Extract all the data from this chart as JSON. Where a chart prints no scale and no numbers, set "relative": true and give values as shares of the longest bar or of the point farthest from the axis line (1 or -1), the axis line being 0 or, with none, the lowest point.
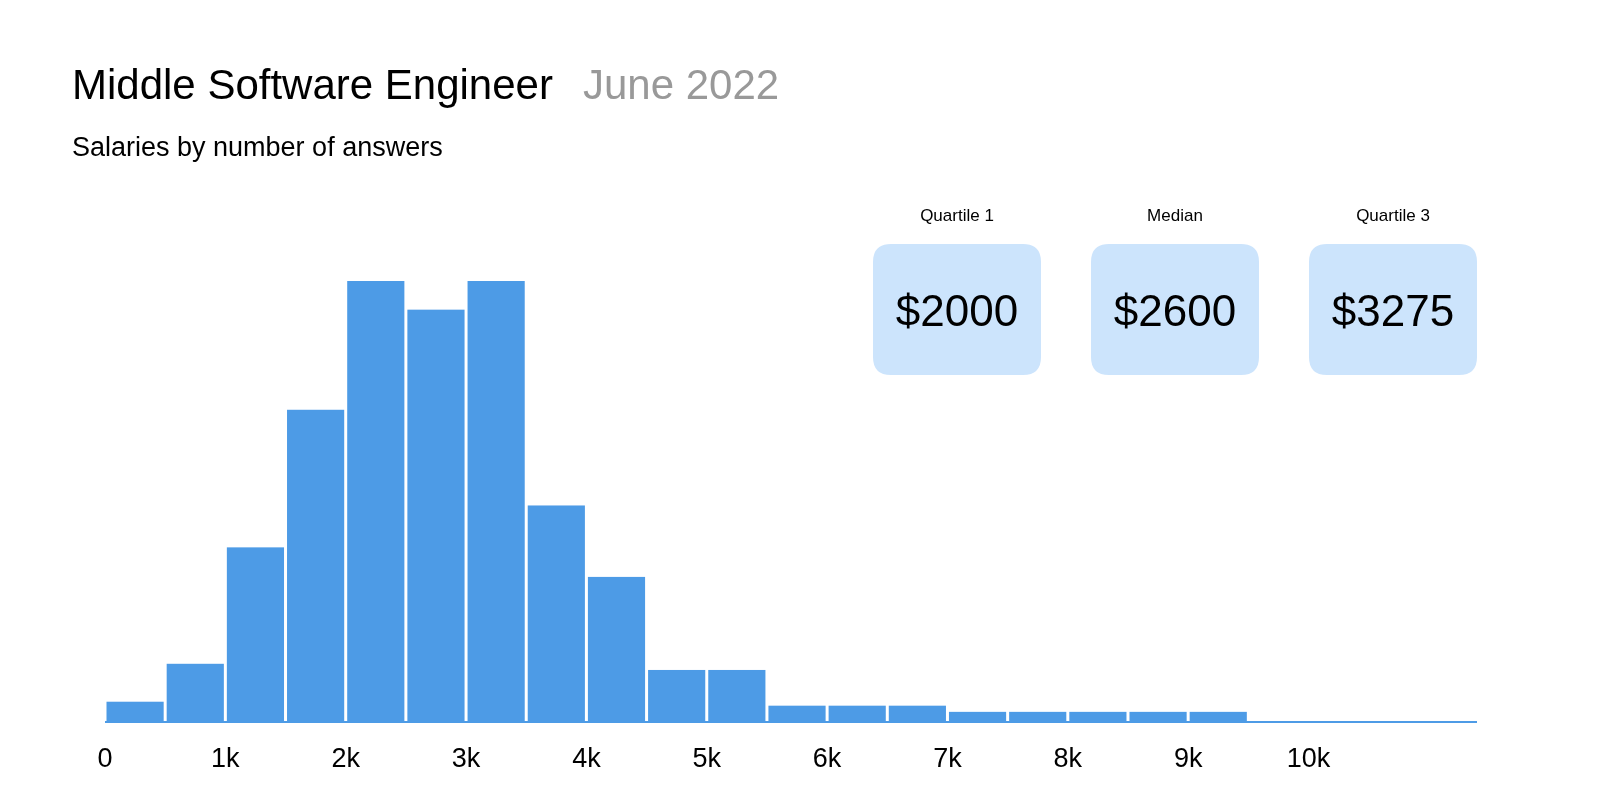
{
  "chart_data": {
    "type": "bar",
    "title": "Middle Software Engineer",
    "subtitle": "Salaries by number of answers",
    "annotations": [
      "June 2022",
      "Quartile 1",
      "$2000",
      "Median",
      "$2600",
      "Quartile 3",
      "$3275"
    ],
    "x": [
      250,
      750,
      1250,
      1750,
      2250,
      2750,
      3250,
      3750,
      4250,
      4750,
      5250,
      5750,
      6250,
      6750,
      7250,
      7750,
      8250,
      8750,
      9250
    ],
    "values": [
      0.046,
      0.132,
      0.396,
      0.708,
      1,
      0.935,
      1,
      0.491,
      0.329,
      0.118,
      0.118,
      0.037,
      0.037,
      0.037,
      0.023,
      0.023,
      0.023,
      0.023,
      0.023
    ],
    "relative": true,
    "color": "#4d9be6",
    "xlim": [
      0,
      11400
    ],
    "xticks": [
      {
        "value": 0,
        "label": "0"
      },
      {
        "value": 1000,
        "label": "1k"
      },
      {
        "value": 2000,
        "label": "2k"
      },
      {
        "value": 3000,
        "label": "3k"
      },
      {
        "value": 4000,
        "label": "4k"
      },
      {
        "value": 5000,
        "label": "5k"
      },
      {
        "value": 6000,
        "label": "6k"
      },
      {
        "value": 7000,
        "label": "7k"
      },
      {
        "value": 8000,
        "label": "8k"
      },
      {
        "value": 9000,
        "label": "9k"
      },
      {
        "value": 10000,
        "label": "10k"
      }
    ]
  }
}
